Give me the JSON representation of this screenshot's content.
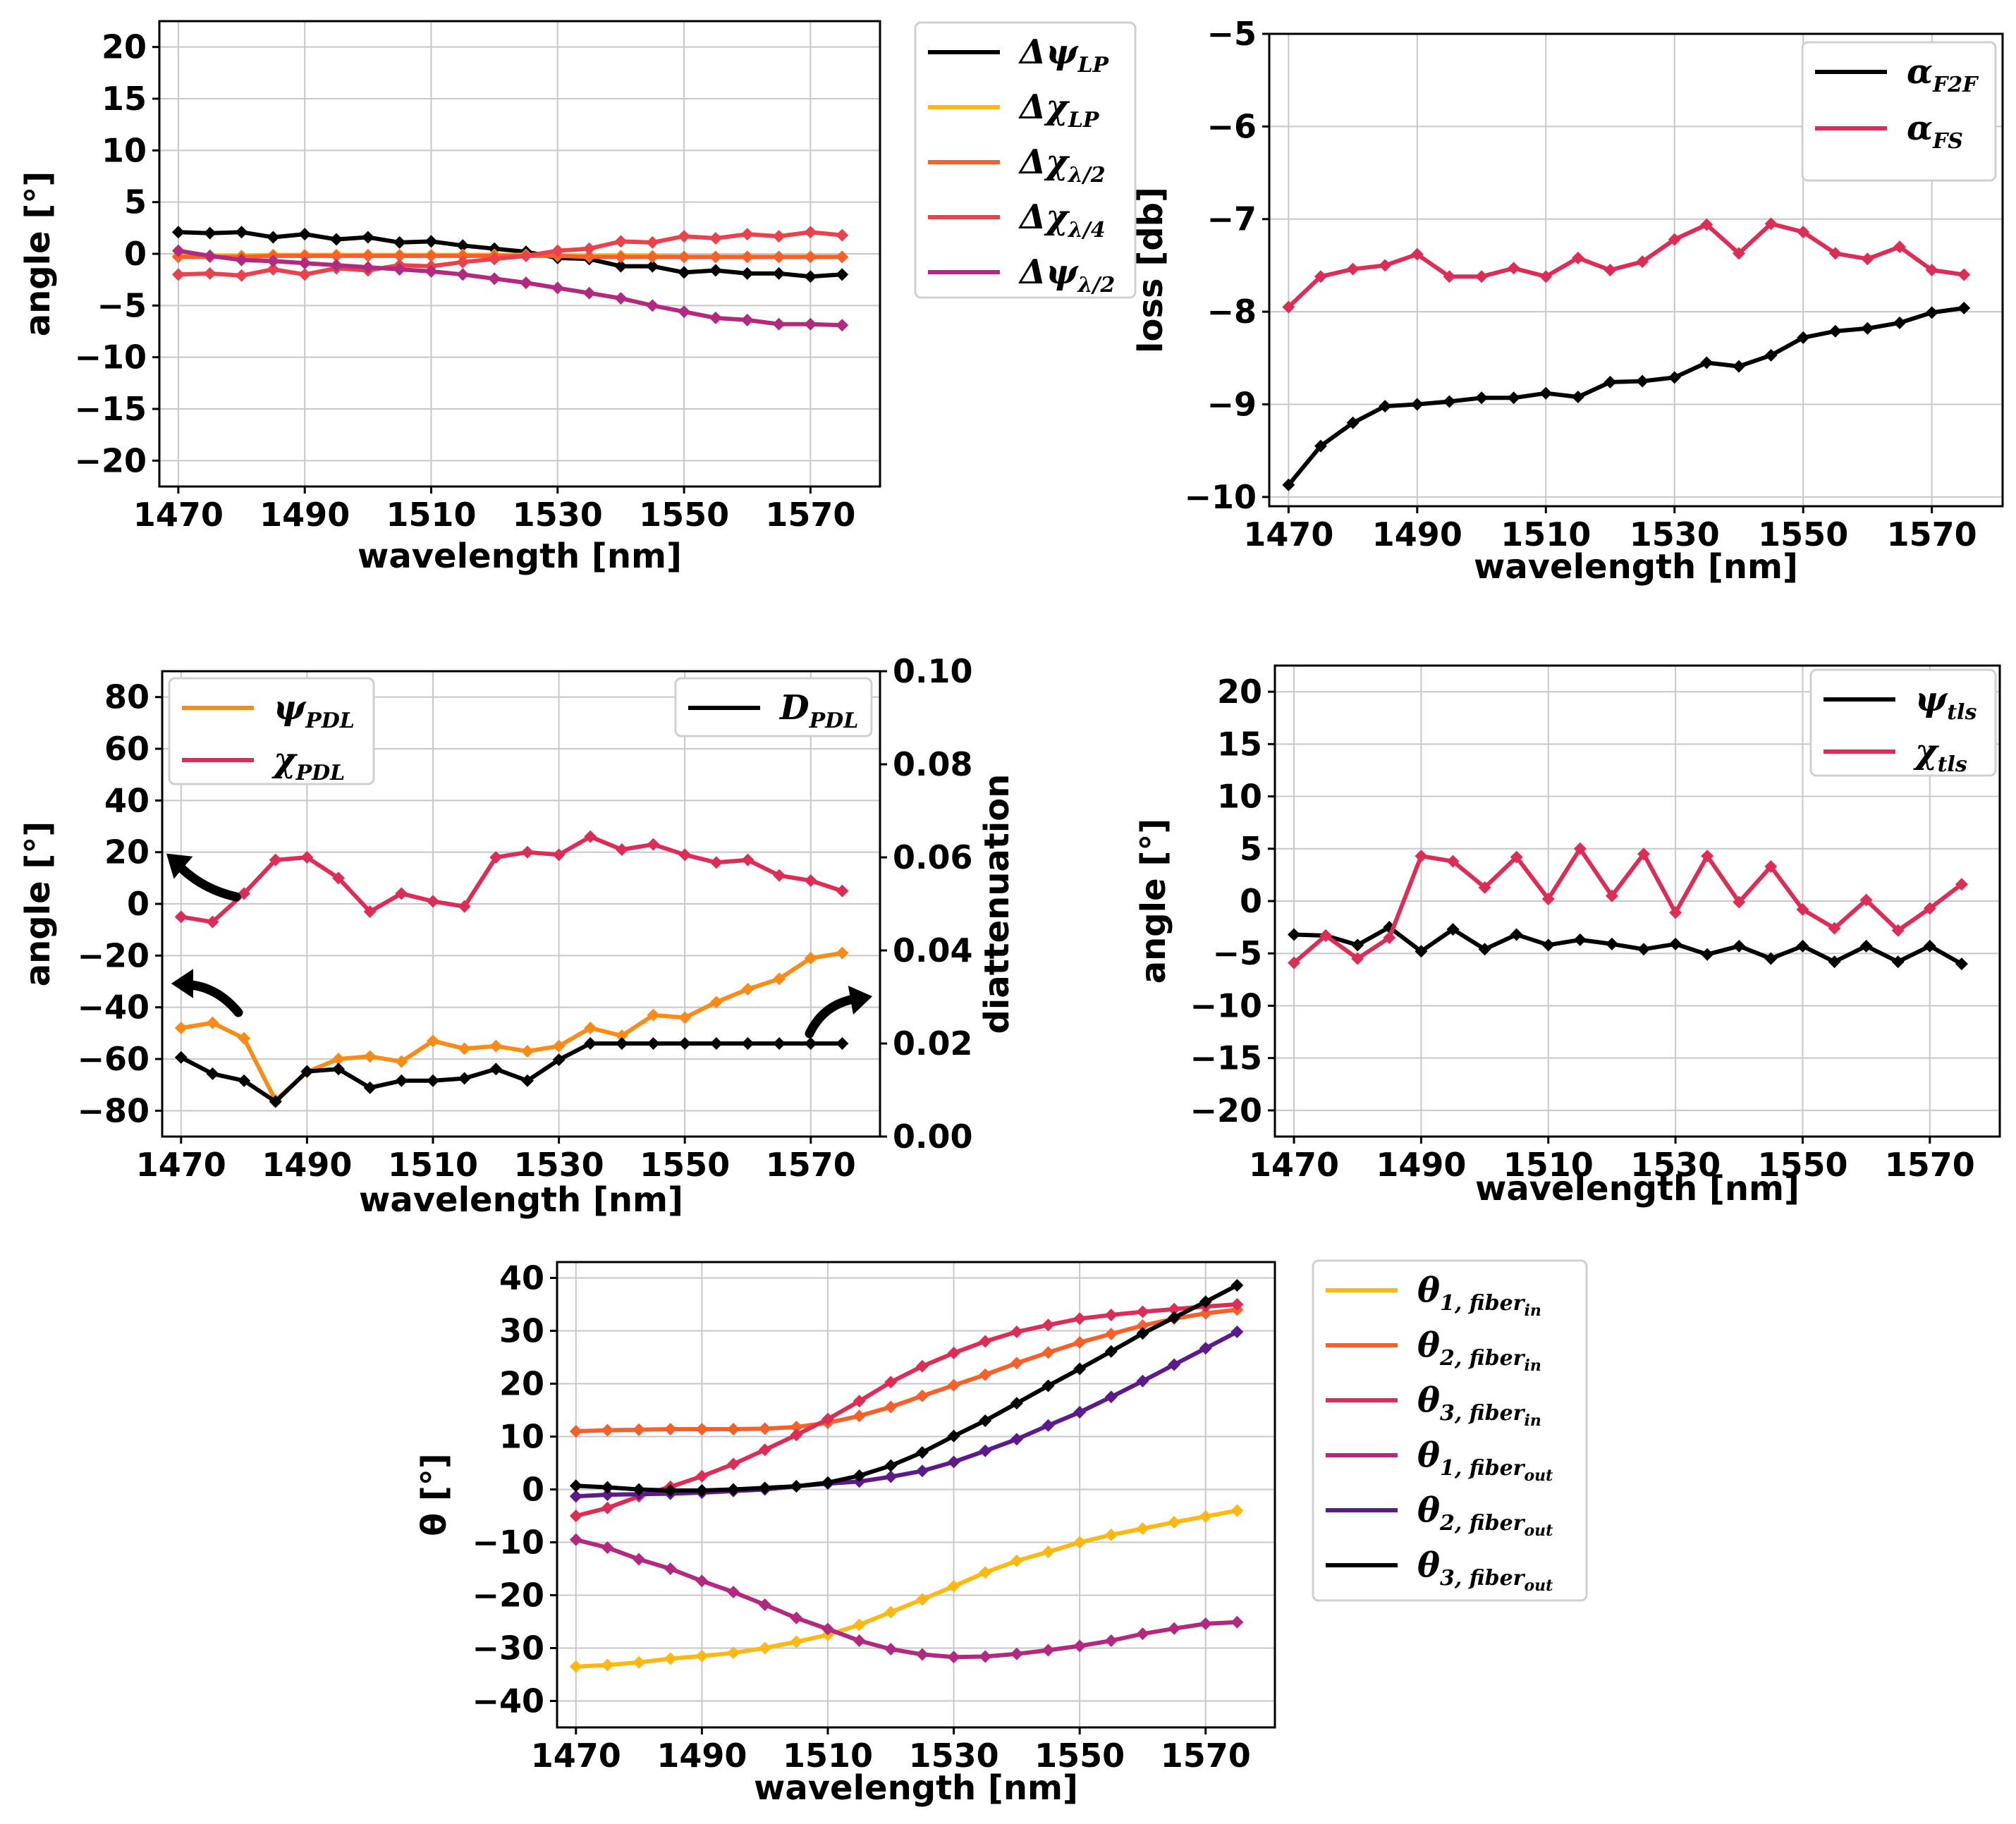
{
  "colors": {
    "black": "#000000",
    "yellow": "#fcb915",
    "orange": "#f98b18",
    "light_orange": "#f6612b",
    "red": "#e8434d",
    "crimson": "#dc2d57",
    "magenta": "#b12a80",
    "dark_purple": "#5c1b8a"
  },
  "chart_data": [
    {
      "id": "p1",
      "type": "line",
      "title": "",
      "xlabel": "wavelength [nm]",
      "ylabel": "angle [°]",
      "xlim": [
        1467,
        1581
      ],
      "ylim": [
        -22.5,
        22.5
      ],
      "xticks": [
        1470,
        1490,
        1510,
        1530,
        1550,
        1570
      ],
      "yticks": [
        20,
        15,
        10,
        5,
        0,
        -5,
        -10,
        -15,
        -20
      ],
      "ytick_labels": [
        "20",
        "15",
        "10",
        "5",
        "0",
        "−5",
        "−10",
        "−15",
        "−20"
      ],
      "legend": {
        "placement": "outside-right",
        "entries": [
          {
            "base": "Δψ",
            "sub": "LP",
            "color": "black"
          },
          {
            "base": "Δχ",
            "sub": "LP",
            "color": "yellow"
          },
          {
            "base": "Δχ",
            "sub": "λ/2",
            "color": "light_orange"
          },
          {
            "base": "Δχ",
            "sub": "λ/4",
            "color": "red"
          },
          {
            "base": "Δψ",
            "sub": "λ/2",
            "color": "magenta"
          }
        ]
      },
      "x": [
        1470,
        1475,
        1480,
        1485,
        1490,
        1495,
        1500,
        1505,
        1510,
        1515,
        1520,
        1525,
        1530,
        1535,
        1540,
        1545,
        1550,
        1555,
        1560,
        1565,
        1570,
        1575
      ],
      "series": [
        {
          "name": "ΔψLP",
          "color": "black",
          "values": [
            2.1,
            2.0,
            2.1,
            1.6,
            1.9,
            1.4,
            1.6,
            1.1,
            1.2,
            0.8,
            0.5,
            0.2,
            -0.4,
            -0.5,
            -1.2,
            -1.2,
            -1.8,
            -1.6,
            -1.9,
            -1.9,
            -2.2,
            -2.0
          ]
        },
        {
          "name": "ΔχLP",
          "color": "yellow",
          "values": [
            -0.2,
            -0.2,
            -0.2,
            -0.1,
            -0.1,
            -0.1,
            -0.1,
            -0.1,
            -0.1,
            -0.1,
            -0.1,
            -0.1,
            -0.2,
            -0.2,
            -0.2,
            -0.2,
            -0.3,
            -0.3,
            -0.3,
            -0.3,
            -0.3,
            -0.3
          ]
        },
        {
          "name": "Δχλ/2",
          "color": "light_orange",
          "values": [
            -0.3,
            -0.3,
            -0.3,
            -0.2,
            -0.2,
            -0.2,
            -0.2,
            -0.2,
            -0.2,
            -0.2,
            -0.2,
            -0.2,
            -0.2,
            -0.3,
            -0.3,
            -0.3,
            -0.3,
            -0.3,
            -0.3,
            -0.3,
            -0.3,
            -0.3
          ]
        },
        {
          "name": "Δχλ/4",
          "color": "red",
          "values": [
            -2.0,
            -1.9,
            -2.1,
            -1.5,
            -2.0,
            -1.4,
            -1.6,
            -1.1,
            -1.2,
            -0.8,
            -0.5,
            -0.2,
            0.3,
            0.5,
            1.2,
            1.1,
            1.7,
            1.5,
            1.9,
            1.7,
            2.1,
            1.8
          ]
        },
        {
          "name": "Δψλ/2",
          "color": "magenta",
          "values": [
            0.3,
            -0.2,
            -0.6,
            -0.7,
            -0.9,
            -1.1,
            -1.3,
            -1.5,
            -1.7,
            -2.0,
            -2.4,
            -2.8,
            -3.3,
            -3.8,
            -4.3,
            -5.0,
            -5.6,
            -6.2,
            -6.4,
            -6.8,
            -6.8,
            -6.9
          ]
        }
      ]
    },
    {
      "id": "p2",
      "type": "line",
      "title": "",
      "xlabel": "wavelength [nm]",
      "ylabel": "loss [db]",
      "xlim": [
        1467,
        1581
      ],
      "ylim": [
        -10.1,
        -5.0
      ],
      "xticks": [
        1470,
        1490,
        1510,
        1530,
        1550,
        1570
      ],
      "yticks": [
        -5,
        -6,
        -7,
        -8,
        -9,
        -10
      ],
      "ytick_labels": [
        "−5",
        "−6",
        "−7",
        "−8",
        "−9",
        "−10"
      ],
      "legend": {
        "placement": "top-right",
        "entries": [
          {
            "base": "α",
            "sub": "F2F",
            "color": "black"
          },
          {
            "base": "α",
            "sub": "FS",
            "color": "crimson"
          }
        ]
      },
      "x": [
        1470,
        1475,
        1480,
        1485,
        1490,
        1495,
        1500,
        1505,
        1510,
        1515,
        1520,
        1525,
        1530,
        1535,
        1540,
        1545,
        1550,
        1555,
        1560,
        1565,
        1570,
        1575
      ],
      "series": [
        {
          "name": "αF2F",
          "color": "black",
          "values": [
            -9.87,
            -9.45,
            -9.2,
            -9.02,
            -9.0,
            -8.97,
            -8.93,
            -8.93,
            -8.88,
            -8.92,
            -8.76,
            -8.75,
            -8.71,
            -8.55,
            -8.59,
            -8.47,
            -8.28,
            -8.21,
            -8.18,
            -8.12,
            -8.01,
            -7.96
          ]
        },
        {
          "name": "αFS",
          "color": "crimson",
          "values": [
            -7.95,
            -7.62,
            -7.54,
            -7.5,
            -7.38,
            -7.62,
            -7.62,
            -7.53,
            -7.62,
            -7.42,
            -7.55,
            -7.46,
            -7.22,
            -7.06,
            -7.37,
            -7.05,
            -7.14,
            -7.37,
            -7.43,
            -7.3,
            -7.55,
            -7.6
          ]
        }
      ]
    },
    {
      "id": "p3",
      "type": "line",
      "title": "",
      "xlabel": "wavelength [nm]",
      "ylabel": "angle [°]",
      "ylabel_right": "diattenuation",
      "xlim": [
        1467,
        1581
      ],
      "ylim": [
        -90,
        90
      ],
      "ylim_right": [
        0.0,
        0.1
      ],
      "xticks": [
        1470,
        1490,
        1510,
        1530,
        1550,
        1570
      ],
      "yticks": [
        80,
        60,
        40,
        20,
        0,
        -20,
        -40,
        -60,
        -80
      ],
      "ytick_labels": [
        "80",
        "60",
        "40",
        "20",
        "0",
        "−20",
        "−40",
        "−60",
        "−80"
      ],
      "yticks_right": [
        0.1,
        0.08,
        0.06,
        0.04,
        0.02,
        0.0
      ],
      "ytick_labels_right": [
        "0.10",
        "0.08",
        "0.06",
        "0.04",
        "0.02",
        "0.00"
      ],
      "legend": {
        "placement": "top-left",
        "entries": [
          {
            "base": "ψ",
            "sub": "PDL",
            "color": "orange"
          },
          {
            "base": "χ",
            "sub": "PDL",
            "color": "crimson"
          }
        ]
      },
      "legend_right": {
        "placement": "top-right",
        "entries": [
          {
            "base": "D",
            "sub": "PDL",
            "color": "black"
          }
        ]
      },
      "annotations": [
        "arrow to left axis",
        "arrow to left axis",
        "arrow to right axis"
      ],
      "x": [
        1470,
        1475,
        1480,
        1485,
        1490,
        1495,
        1500,
        1505,
        1510,
        1515,
        1520,
        1525,
        1530,
        1535,
        1540,
        1545,
        1550,
        1555,
        1560,
        1565,
        1570,
        1575
      ],
      "series": [
        {
          "name": "ψPDL",
          "color": "orange",
          "axis": "left",
          "values": [
            -48,
            -46,
            -52,
            -76,
            -65,
            -60,
            -59,
            -61,
            -53,
            -56,
            -55,
            -57,
            -55,
            -48,
            -51,
            -43,
            -44,
            -38,
            -33,
            -29,
            -21,
            -19
          ]
        },
        {
          "name": "χPDL",
          "color": "crimson",
          "axis": "left",
          "values": [
            -5,
            -7,
            4,
            17,
            18,
            10,
            -3,
            4,
            1,
            -1,
            18,
            20,
            19,
            26,
            21,
            23,
            19,
            16,
            17,
            11,
            9,
            5
          ]
        },
        {
          "name": "DPDL",
          "color": "black",
          "axis": "right",
          "values": [
            0.017,
            0.0135,
            0.012,
            0.0075,
            0.014,
            0.0145,
            0.0105,
            0.012,
            0.012,
            0.0125,
            0.0145,
            0.012,
            0.0165,
            0.02,
            0.02,
            0.02,
            0.02,
            0.02,
            0.02,
            0.02,
            0.02,
            0.02
          ]
        }
      ]
    },
    {
      "id": "p4",
      "type": "line",
      "title": "",
      "xlabel": "wavelength [nm]",
      "ylabel": "angle [°]",
      "xlim": [
        1467,
        1581
      ],
      "ylim": [
        -22.5,
        22.5
      ],
      "xticks": [
        1470,
        1490,
        1510,
        1530,
        1550,
        1570
      ],
      "yticks": [
        20,
        15,
        10,
        5,
        0,
        -5,
        -10,
        -15,
        -20
      ],
      "ytick_labels": [
        "20",
        "15",
        "10",
        "5",
        "0",
        "−5",
        "−10",
        "−15",
        "−20"
      ],
      "legend": {
        "placement": "top-right",
        "entries": [
          {
            "base": "ψ",
            "sub": "tls",
            "color": "black"
          },
          {
            "base": "χ",
            "sub": "tls",
            "color": "crimson"
          }
        ]
      },
      "x": [
        1470,
        1475,
        1480,
        1485,
        1490,
        1495,
        1500,
        1505,
        1510,
        1515,
        1520,
        1525,
        1530,
        1535,
        1540,
        1545,
        1550,
        1555,
        1560,
        1565,
        1570,
        1575
      ],
      "series": [
        {
          "name": "ψtls",
          "color": "black",
          "values": [
            -3.2,
            -3.3,
            -4.2,
            -2.5,
            -4.8,
            -2.7,
            -4.6,
            -3.2,
            -4.2,
            -3.7,
            -4.1,
            -4.6,
            -4.1,
            -5.1,
            -4.3,
            -5.5,
            -4.3,
            -5.8,
            -4.3,
            -5.8,
            -4.3,
            -6.0
          ]
        },
        {
          "name": "χtls",
          "color": "crimson",
          "values": [
            -5.9,
            -3.3,
            -5.5,
            -3.5,
            4.3,
            3.8,
            1.3,
            4.2,
            0.2,
            5.0,
            0.5,
            4.5,
            -1.1,
            4.3,
            -0.1,
            3.3,
            -0.8,
            -2.6,
            0.1,
            -2.8,
            -0.7,
            1.6
          ]
        }
      ]
    },
    {
      "id": "p5",
      "type": "line",
      "title": "",
      "xlabel": "wavelength [nm]",
      "ylabel": "θ [°]",
      "xlim": [
        1467,
        1581
      ],
      "ylim": [
        -45,
        43
      ],
      "xticks": [
        1470,
        1490,
        1510,
        1530,
        1550,
        1570
      ],
      "yticks": [
        40,
        30,
        20,
        10,
        0,
        -10,
        -20,
        -30,
        -40
      ],
      "ytick_labels": [
        "40",
        "30",
        "20",
        "10",
        "0",
        "−10",
        "−20",
        "−30",
        "−40"
      ],
      "legend": {
        "placement": "outside-right",
        "entries": [
          {
            "base": "θ",
            "sub": "1, fiber",
            "subsub": "in",
            "color": "yellow"
          },
          {
            "base": "θ",
            "sub": "2, fiber",
            "subsub": "in",
            "color": "light_orange"
          },
          {
            "base": "θ",
            "sub": "3, fiber",
            "subsub": "in",
            "color": "crimson"
          },
          {
            "base": "θ",
            "sub": "1, fiber",
            "subsub": "out",
            "color": "magenta"
          },
          {
            "base": "θ",
            "sub": "2, fiber",
            "subsub": "out",
            "color": "dark_purple"
          },
          {
            "base": "θ",
            "sub": "3, fiber",
            "subsub": "out",
            "color": "black"
          }
        ]
      },
      "x": [
        1470,
        1475,
        1480,
        1485,
        1490,
        1495,
        1500,
        1505,
        1510,
        1515,
        1520,
        1525,
        1530,
        1535,
        1540,
        1545,
        1550,
        1555,
        1560,
        1565,
        1570,
        1575
      ],
      "series": [
        {
          "name": "θ1,fiber_in",
          "color": "yellow",
          "values": [
            -33.5,
            -33.2,
            -32.7,
            -32.0,
            -31.5,
            -30.9,
            -30.0,
            -28.8,
            -27.5,
            -25.6,
            -23.2,
            -20.8,
            -18.3,
            -15.7,
            -13.5,
            -11.8,
            -10.0,
            -8.6,
            -7.4,
            -6.2,
            -5.1,
            -4.0
          ]
        },
        {
          "name": "θ2,fiber_in",
          "color": "light_orange",
          "values": [
            11.0,
            11.2,
            11.3,
            11.4,
            11.4,
            11.4,
            11.5,
            11.8,
            12.6,
            13.9,
            15.6,
            17.7,
            19.7,
            21.7,
            23.9,
            25.9,
            27.8,
            29.4,
            31.0,
            32.3,
            33.3,
            34.0
          ]
        },
        {
          "name": "θ3,fiber_in",
          "color": "crimson",
          "values": [
            -5.0,
            -3.5,
            -1.3,
            0.5,
            2.5,
            4.8,
            7.5,
            10.3,
            13.3,
            16.7,
            20.3,
            23.3,
            25.8,
            28.0,
            29.8,
            31.1,
            32.3,
            33.0,
            33.6,
            34.1,
            34.6,
            35.0
          ]
        },
        {
          "name": "θ1,fiber_out",
          "color": "magenta",
          "values": [
            -9.5,
            -11.0,
            -13.2,
            -15.0,
            -17.3,
            -19.4,
            -21.8,
            -24.3,
            -26.4,
            -28.6,
            -30.2,
            -31.2,
            -31.7,
            -31.6,
            -31.1,
            -30.4,
            -29.6,
            -28.6,
            -27.3,
            -26.3,
            -25.4,
            -25.1
          ]
        },
        {
          "name": "θ2,fiber_out",
          "color": "dark_purple",
          "values": [
            -1.3,
            -1.0,
            -0.9,
            -0.8,
            -0.6,
            -0.3,
            0.0,
            0.6,
            1.1,
            1.5,
            2.4,
            3.5,
            5.2,
            7.3,
            9.5,
            12.1,
            14.6,
            17.5,
            20.5,
            23.6,
            26.7,
            29.8
          ]
        },
        {
          "name": "θ3,fiber_out",
          "color": "black",
          "values": [
            0.7,
            0.4,
            0.0,
            -0.2,
            -0.2,
            0.0,
            0.3,
            0.6,
            1.3,
            2.6,
            4.5,
            7.0,
            10.1,
            13.0,
            16.3,
            19.6,
            22.8,
            26.1,
            29.5,
            32.5,
            35.5,
            38.6
          ]
        }
      ]
    }
  ]
}
